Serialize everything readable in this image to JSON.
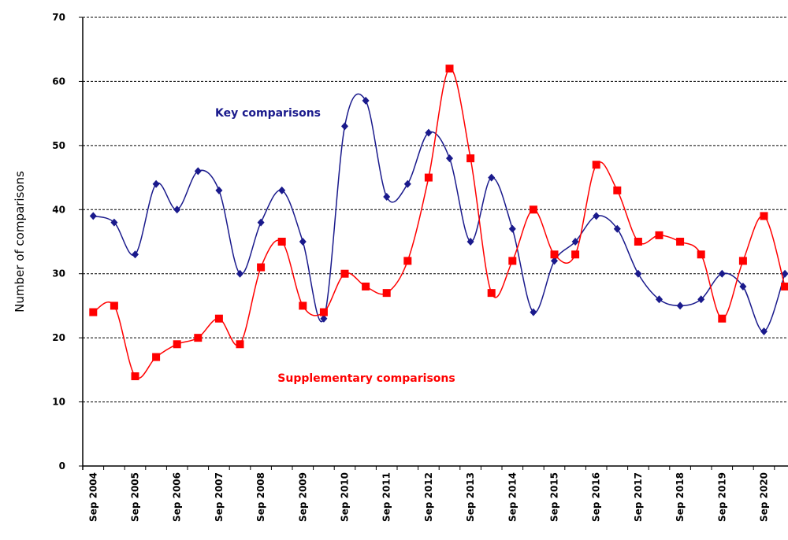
{
  "chart_data": {
    "type": "line",
    "y_label": "Number of comparisons",
    "annotations": [
      "Key comparisons",
      "Supplementary comparisons"
    ],
    "categories": [
      "Sep 2004",
      null,
      "Sep 2005",
      null,
      "Sep 2006",
      null,
      "Sep 2007",
      null,
      "Sep 2008",
      null,
      "Sep 2009",
      null,
      "Sep 2010",
      null,
      "Sep 2011",
      null,
      "Sep 2012",
      null,
      "Sep 2013",
      null,
      "Sep 2014",
      null,
      "Sep 2015",
      null,
      "Sep 2016",
      null,
      "Sep 2017",
      null,
      "Sep 2018",
      null,
      "Sep 2019",
      null,
      "Sep 2020",
      null
    ],
    "series": [
      {
        "name": "Key comparisons",
        "color": "#1a1a8c",
        "marker": "diamond",
        "values": [
          39,
          38,
          33,
          44,
          40,
          46,
          43,
          30,
          38,
          43,
          35,
          23,
          53,
          57,
          42,
          44,
          52,
          48,
          35,
          45,
          37,
          24,
          32,
          35,
          39,
          37,
          30,
          26,
          25,
          26,
          30,
          28,
          21,
          30
        ]
      },
      {
        "name": "Supplementary comparisons",
        "color": "#ff0000",
        "marker": "square",
        "values": [
          24,
          25,
          14,
          17,
          19,
          20,
          23,
          19,
          31,
          35,
          25,
          24,
          30,
          28,
          27,
          32,
          45,
          62,
          48,
          27,
          32,
          40,
          33,
          33,
          47,
          43,
          35,
          36,
          35,
          33,
          23,
          32,
          39,
          28
        ]
      }
    ],
    "ylim": [
      0,
      70
    ],
    "yticks": [
      0,
      10,
      20,
      30,
      40,
      50,
      60,
      70
    ],
    "grid": true
  }
}
